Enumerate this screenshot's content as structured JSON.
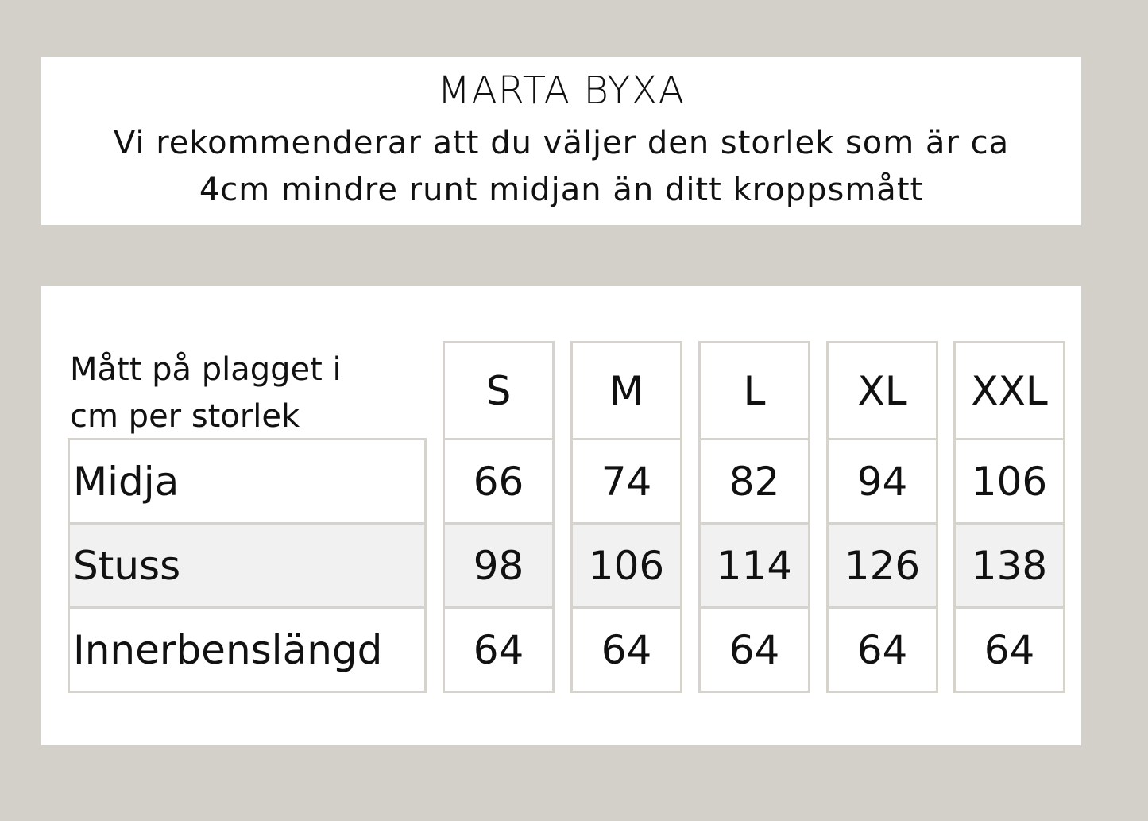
{
  "header": {
    "title": "MARTA BYXA",
    "subtitle_line1": "Vi rekommenderar att du väljer den storlek som är ca",
    "subtitle_line2": "4cm mindre runt midjan än ditt kroppsmått"
  },
  "table": {
    "corner_label_line1": "Mått på plagget i",
    "corner_label_line2": "cm per storlek",
    "sizes": [
      "S",
      "M",
      "L",
      "XL",
      "XXL"
    ],
    "rows": [
      {
        "label": "Midja",
        "values": [
          "66",
          "74",
          "82",
          "94",
          "106"
        ]
      },
      {
        "label": "Stuss",
        "values": [
          "98",
          "106",
          "114",
          "126",
          "138"
        ]
      },
      {
        "label": "Innerbenslängd",
        "values": [
          "64",
          "64",
          "64",
          "64",
          "64"
        ]
      }
    ]
  },
  "colors": {
    "background": "#d3d0c9",
    "border": "#d6d3cc",
    "shaded_row": "#f1f1f1"
  }
}
